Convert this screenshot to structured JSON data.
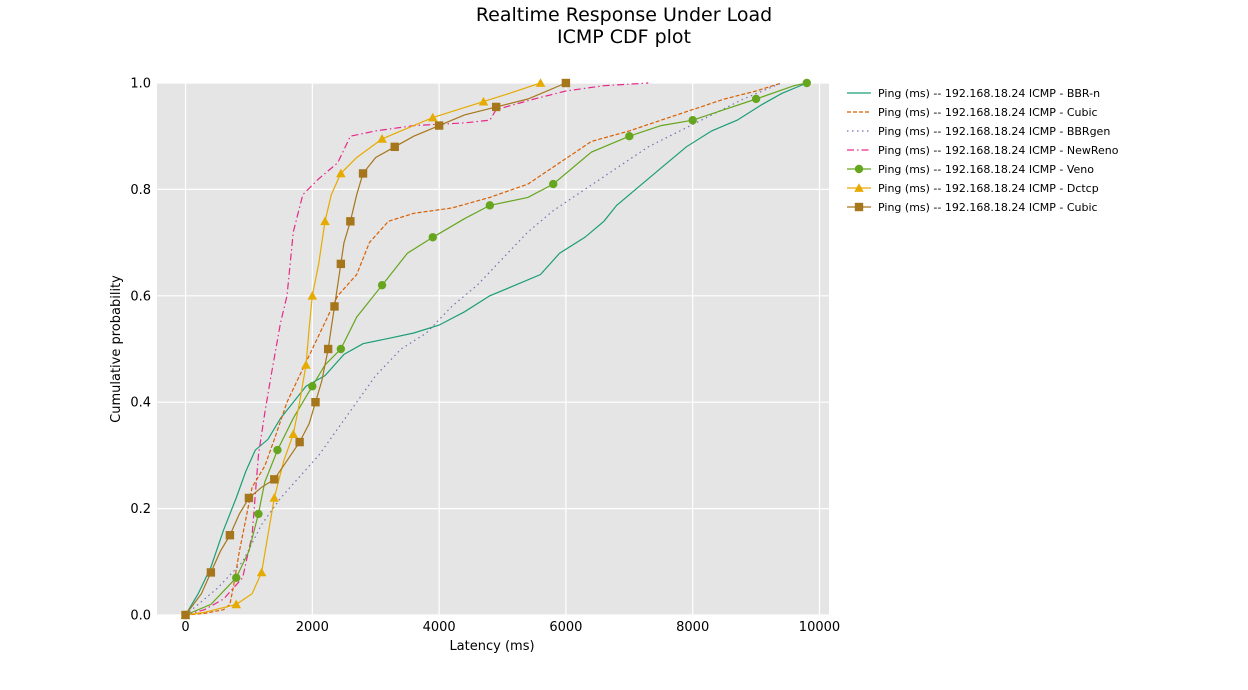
{
  "chart_data": {
    "type": "line",
    "title": "Realtime Response Under Load",
    "subtitle": "ICMP CDF plot",
    "xlabel": "Latency (ms)",
    "ylabel": "Cumulative probability",
    "xlim": [
      -450,
      10150
    ],
    "ylim": [
      0,
      1
    ],
    "xticks": [
      0,
      2000,
      4000,
      6000,
      8000,
      10000
    ],
    "xtick_labels": [
      "0",
      "2000",
      "4000",
      "6000",
      "8000",
      "10000"
    ],
    "yticks": [
      0,
      0.2,
      0.4,
      0.6,
      0.8,
      1.0
    ],
    "ytick_labels": [
      "0.0",
      "0.2",
      "0.4",
      "0.6",
      "0.8",
      "1.0"
    ],
    "grid": true,
    "background": "#e5e5e5",
    "legend_position": "outside-right",
    "series": [
      {
        "name": "Ping (ms) -- 192.168.18.24 ICMP - BBR-n",
        "color": "#1b9e77",
        "dash": "solid",
        "marker": "none",
        "points": [
          [
            0,
            0
          ],
          [
            200,
            0.04
          ],
          [
            400,
            0.09
          ],
          [
            600,
            0.16
          ],
          [
            800,
            0.22
          ],
          [
            950,
            0.27
          ],
          [
            1100,
            0.31
          ],
          [
            1300,
            0.33
          ],
          [
            1500,
            0.37
          ],
          [
            1700,
            0.4
          ],
          [
            1900,
            0.43
          ],
          [
            2200,
            0.45
          ],
          [
            2500,
            0.49
          ],
          [
            2800,
            0.51
          ],
          [
            3200,
            0.52
          ],
          [
            3600,
            0.53
          ],
          [
            4000,
            0.545
          ],
          [
            4400,
            0.57
          ],
          [
            4800,
            0.6
          ],
          [
            5200,
            0.62
          ],
          [
            5600,
            0.64
          ],
          [
            5900,
            0.68
          ],
          [
            6300,
            0.71
          ],
          [
            6600,
            0.74
          ],
          [
            6800,
            0.77
          ],
          [
            7100,
            0.8
          ],
          [
            7500,
            0.84
          ],
          [
            7900,
            0.88
          ],
          [
            8300,
            0.91
          ],
          [
            8700,
            0.93
          ],
          [
            9100,
            0.96
          ],
          [
            9400,
            0.98
          ],
          [
            9800,
            1.0
          ]
        ]
      },
      {
        "name": "Ping (ms) -- 192.168.18.24 ICMP - Cubic",
        "color": "#d95f02",
        "dash": "dashed",
        "marker": "none",
        "points": [
          [
            0,
            0
          ],
          [
            300,
            0.003
          ],
          [
            600,
            0.01
          ],
          [
            700,
            0.02
          ],
          [
            750,
            0.05
          ],
          [
            850,
            0.12
          ],
          [
            950,
            0.18
          ],
          [
            1050,
            0.24
          ],
          [
            1250,
            0.28
          ],
          [
            1400,
            0.33
          ],
          [
            1600,
            0.4
          ],
          [
            1800,
            0.45
          ],
          [
            2000,
            0.5
          ],
          [
            2200,
            0.55
          ],
          [
            2400,
            0.6
          ],
          [
            2700,
            0.64
          ],
          [
            2900,
            0.7
          ],
          [
            3200,
            0.74
          ],
          [
            3600,
            0.755
          ],
          [
            4200,
            0.765
          ],
          [
            4800,
            0.785
          ],
          [
            5400,
            0.81
          ],
          [
            5900,
            0.85
          ],
          [
            6400,
            0.89
          ],
          [
            7000,
            0.91
          ],
          [
            7500,
            0.93
          ],
          [
            8000,
            0.95
          ],
          [
            8500,
            0.97
          ],
          [
            9000,
            0.985
          ],
          [
            9400,
            1.0
          ]
        ]
      },
      {
        "name": "Ping (ms) -- 192.168.18.24 ICMP - BBRgen",
        "color": "#7570b3",
        "dash": "dotted",
        "marker": "none",
        "points": [
          [
            0,
            0
          ],
          [
            500,
            0.05
          ],
          [
            900,
            0.1
          ],
          [
            1200,
            0.17
          ],
          [
            1500,
            0.22
          ],
          [
            1800,
            0.26
          ],
          [
            2100,
            0.3
          ],
          [
            2400,
            0.35
          ],
          [
            2700,
            0.4
          ],
          [
            3000,
            0.45
          ],
          [
            3400,
            0.5
          ],
          [
            3800,
            0.53
          ],
          [
            4200,
            0.58
          ],
          [
            4600,
            0.62
          ],
          [
            5000,
            0.67
          ],
          [
            5400,
            0.72
          ],
          [
            5800,
            0.76
          ],
          [
            6300,
            0.8
          ],
          [
            6800,
            0.84
          ],
          [
            7300,
            0.88
          ],
          [
            7800,
            0.91
          ],
          [
            8300,
            0.94
          ],
          [
            8800,
            0.97
          ],
          [
            9400,
            1.0
          ]
        ]
      },
      {
        "name": "Ping (ms) -- 192.168.18.24 ICMP - NewReno",
        "color": "#e7298a",
        "dash": "dashdot",
        "marker": "none",
        "points": [
          [
            0,
            0
          ],
          [
            300,
            0.01
          ],
          [
            600,
            0.03
          ],
          [
            900,
            0.07
          ],
          [
            1050,
            0.15
          ],
          [
            1150,
            0.3
          ],
          [
            1250,
            0.38
          ],
          [
            1350,
            0.45
          ],
          [
            1500,
            0.55
          ],
          [
            1600,
            0.6
          ],
          [
            1700,
            0.72
          ],
          [
            1850,
            0.79
          ],
          [
            2100,
            0.82
          ],
          [
            2400,
            0.85
          ],
          [
            2600,
            0.9
          ],
          [
            3000,
            0.91
          ],
          [
            3600,
            0.92
          ],
          [
            4400,
            0.925
          ],
          [
            4800,
            0.93
          ],
          [
            4900,
            0.95
          ],
          [
            5500,
            0.97
          ],
          [
            6000,
            0.985
          ],
          [
            6600,
            0.995
          ],
          [
            7300,
            1.0
          ]
        ]
      },
      {
        "name": "Ping (ms) -- 192.168.18.24 ICMP - Veno",
        "color": "#66a61e",
        "dash": "solid",
        "marker": "circle",
        "points": [
          [
            0,
            0
          ],
          [
            400,
            0.02
          ],
          [
            800,
            0.07
          ],
          [
            1000,
            0.12
          ],
          [
            1150,
            0.19
          ],
          [
            1250,
            0.25
          ],
          [
            1450,
            0.31
          ],
          [
            1700,
            0.37
          ],
          [
            2000,
            0.43
          ],
          [
            2200,
            0.47
          ],
          [
            2450,
            0.5
          ],
          [
            2700,
            0.56
          ],
          [
            3100,
            0.62
          ],
          [
            3500,
            0.68
          ],
          [
            3900,
            0.71
          ],
          [
            4400,
            0.745
          ],
          [
            4800,
            0.77
          ],
          [
            5400,
            0.785
          ],
          [
            5800,
            0.81
          ],
          [
            6400,
            0.87
          ],
          [
            7000,
            0.9
          ],
          [
            7500,
            0.92
          ],
          [
            8000,
            0.93
          ],
          [
            8500,
            0.95
          ],
          [
            9000,
            0.97
          ],
          [
            9600,
            0.995
          ],
          [
            9800,
            1.0
          ]
        ]
      },
      {
        "name": "Ping (ms) -- 192.168.18.24 ICMP - Dctcp",
        "color": "#e6ab02",
        "dash": "solid",
        "marker": "triangle",
        "points": [
          [
            0,
            0
          ],
          [
            300,
            0.005
          ],
          [
            800,
            0.02
          ],
          [
            1050,
            0.04
          ],
          [
            1200,
            0.08
          ],
          [
            1300,
            0.15
          ],
          [
            1400,
            0.22
          ],
          [
            1550,
            0.29
          ],
          [
            1700,
            0.34
          ],
          [
            1800,
            0.4
          ],
          [
            1900,
            0.47
          ],
          [
            1950,
            0.54
          ],
          [
            2000,
            0.6
          ],
          [
            2100,
            0.66
          ],
          [
            2200,
            0.74
          ],
          [
            2300,
            0.79
          ],
          [
            2450,
            0.83
          ],
          [
            2700,
            0.86
          ],
          [
            3100,
            0.895
          ],
          [
            3500,
            0.915
          ],
          [
            3900,
            0.935
          ],
          [
            4300,
            0.95
          ],
          [
            4700,
            0.965
          ],
          [
            5100,
            0.98
          ],
          [
            5600,
            1.0
          ]
        ]
      },
      {
        "name": "Ping (ms) -- 192.168.18.24 ICMP - Cubic",
        "color": "#a6761d",
        "dash": "solid",
        "marker": "square",
        "points": [
          [
            0,
            0
          ],
          [
            250,
            0.04
          ],
          [
            400,
            0.08
          ],
          [
            550,
            0.12
          ],
          [
            700,
            0.15
          ],
          [
            850,
            0.19
          ],
          [
            1000,
            0.22
          ],
          [
            1200,
            0.24
          ],
          [
            1400,
            0.255
          ],
          [
            1600,
            0.29
          ],
          [
            1800,
            0.325
          ],
          [
            1950,
            0.36
          ],
          [
            2050,
            0.4
          ],
          [
            2150,
            0.44
          ],
          [
            2250,
            0.5
          ],
          [
            2300,
            0.54
          ],
          [
            2350,
            0.58
          ],
          [
            2400,
            0.62
          ],
          [
            2450,
            0.66
          ],
          [
            2500,
            0.7
          ],
          [
            2600,
            0.74
          ],
          [
            2700,
            0.79
          ],
          [
            2800,
            0.83
          ],
          [
            3000,
            0.86
          ],
          [
            3300,
            0.88
          ],
          [
            3600,
            0.9
          ],
          [
            4000,
            0.92
          ],
          [
            4400,
            0.94
          ],
          [
            4900,
            0.955
          ],
          [
            5400,
            0.97
          ],
          [
            6000,
            1.0
          ]
        ]
      }
    ]
  }
}
